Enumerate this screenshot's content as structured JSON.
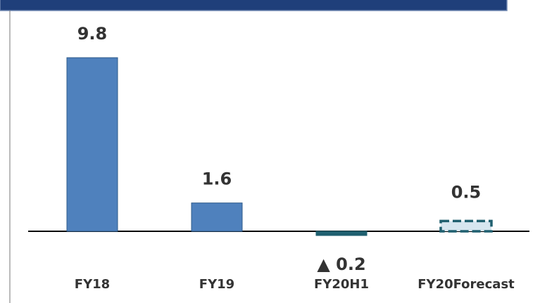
{
  "chart_data": {
    "type": "bar",
    "categories": [
      "FY18",
      "FY19",
      "FY20H1",
      "FY20Forecast"
    ],
    "values": [
      9.8,
      1.6,
      -0.2,
      0.5
    ],
    "value_labels": [
      "9.8",
      "1.6",
      "▲ 0.2",
      "0.5"
    ],
    "colors": [
      "#4f81bd",
      "#4f81bd",
      "#1f5f6f",
      "#1f5f6f"
    ],
    "styles": [
      "solid",
      "solid",
      "solid",
      "dashed"
    ]
  }
}
